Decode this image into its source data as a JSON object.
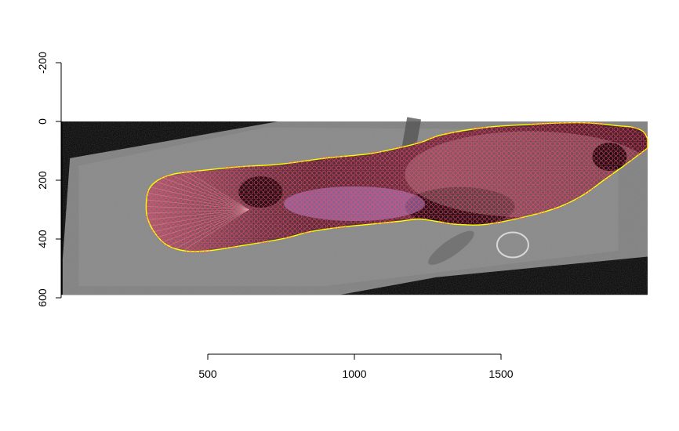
{
  "chart_data": {
    "type": "scatter",
    "title": "",
    "xlabel": "",
    "ylabel": "",
    "xlim": [
      0,
      2000
    ],
    "ylim": [
      600,
      -200
    ],
    "y_axis_reversed": true,
    "x_ticks": [
      500,
      1000,
      1500
    ],
    "x_tick_labels": [
      "500",
      "1000",
      "1500"
    ],
    "y_ticks": [
      -200,
      0,
      200,
      400,
      600
    ],
    "y_tick_labels": [
      "-200",
      "0",
      "200",
      "400",
      "600"
    ],
    "grid": false,
    "legend": "none",
    "background_image": "grayscale fish photograph with color overlay, black border",
    "series": [
      {
        "kind": "outline",
        "color": "#ffff00",
        "points": [
          [
            2000,
            60
          ],
          [
            1985,
            35
          ],
          [
            1950,
            20
          ],
          [
            1900,
            15
          ],
          [
            1800,
            5
          ],
          [
            1700,
            5
          ],
          [
            1600,
            10
          ],
          [
            1450,
            20
          ],
          [
            1300,
            45
          ],
          [
            1230,
            70
          ],
          [
            1150,
            90
          ],
          [
            1050,
            110
          ],
          [
            900,
            125
          ],
          [
            750,
            145
          ],
          [
            600,
            155
          ],
          [
            450,
            170
          ],
          [
            380,
            180
          ],
          [
            330,
            200
          ],
          [
            300,
            230
          ],
          [
            290,
            280
          ],
          [
            295,
            330
          ],
          [
            320,
            380
          ],
          [
            360,
            420
          ],
          [
            420,
            440
          ],
          [
            500,
            440
          ],
          [
            600,
            425
          ],
          [
            750,
            400
          ],
          [
            850,
            375
          ],
          [
            950,
            360
          ],
          [
            1050,
            350
          ],
          [
            1150,
            340
          ],
          [
            1220,
            332
          ],
          [
            1280,
            340
          ],
          [
            1350,
            350
          ],
          [
            1450,
            350
          ],
          [
            1600,
            320
          ],
          [
            1700,
            290
          ],
          [
            1780,
            250
          ],
          [
            1850,
            200
          ],
          [
            1920,
            150
          ],
          [
            2000,
            90
          ]
        ]
      },
      {
        "kind": "landmarks",
        "color": "#ff4d6d",
        "marker": "open-circle",
        "description_points_count_approx": 600
      }
    ]
  }
}
